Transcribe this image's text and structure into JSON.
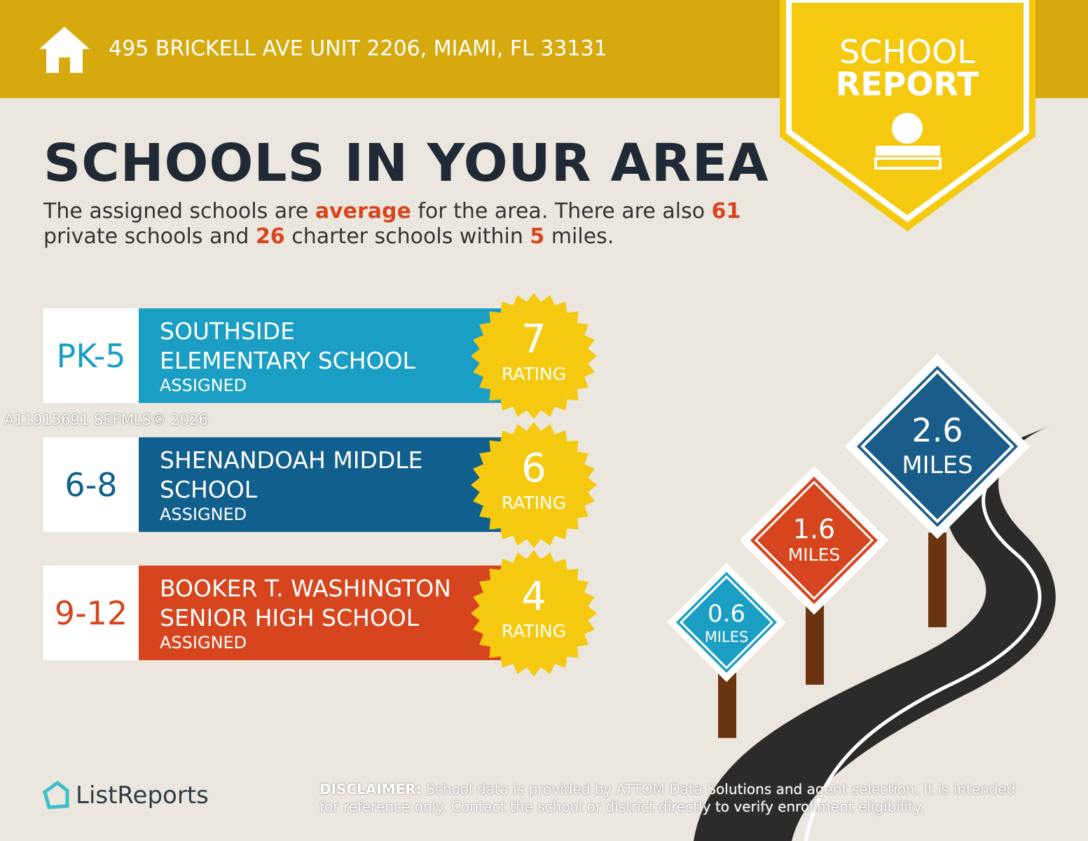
{
  "header": {
    "address": "495 BRICKELL AVE UNIT 2206, MIAMI, FL 33131"
  },
  "badge": {
    "line1": "SCHOOL",
    "line2": "REPORT"
  },
  "title": "SCHOOLS IN YOUR AREA",
  "summary": {
    "parts": [
      "The assigned schools are ",
      "average",
      " for the area. There are also ",
      "61",
      " private schools and ",
      "26",
      " charter schools within ",
      "5",
      " miles."
    ]
  },
  "schools": [
    {
      "grades": "PK-5",
      "name": [
        "SOUTHSIDE",
        "ELEMENTARY SCHOOL"
      ],
      "status": "ASSIGNED",
      "rating": 7,
      "rating_label": "RATING"
    },
    {
      "grades": "6-8",
      "name": [
        "SHENANDOAH MIDDLE",
        "SCHOOL"
      ],
      "status": "ASSIGNED",
      "rating": 6,
      "rating_label": "RATING"
    },
    {
      "grades": "9-12",
      "name": [
        "BOOKER T. WASHINGTON",
        "SENIOR HIGH SCHOOL"
      ],
      "status": "ASSIGNED",
      "rating": 4,
      "rating_label": "RATING"
    }
  ],
  "distances": [
    {
      "value": "2.6",
      "unit": "MILES"
    },
    {
      "value": "1.6",
      "unit": "MILES"
    },
    {
      "value": "0.6",
      "unit": "MILES"
    }
  ],
  "watermark": "A11915691  SEFMLS© 2026",
  "footer": {
    "brand": "ListReports",
    "disclaimer_label": "DISCLAIMER:",
    "disclaimer": " School data is provided by ATTOM Data Solutions and agent selection. It is intended for reference only. Contact the school or district directly to verify enrollment eligibility."
  }
}
